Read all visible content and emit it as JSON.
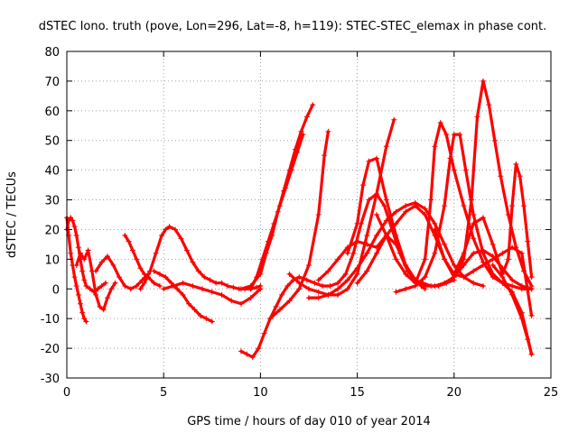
{
  "chart_data": {
    "type": "scatter",
    "title": "dSTEC Iono. truth (pove, Lon=296, Lat=-8, h=119): STEC-STEC_elemax in phase cont.",
    "xlabel": "GPS time / hours of day 010 of year 2014",
    "ylabel": "dSTEC  / TECUs",
    "xlim": [
      0,
      25
    ],
    "ylim": [
      -30,
      80
    ],
    "grid": true,
    "marker": "plus",
    "colors": {
      "series": "#ff0000",
      "grid": "#a0a0a0",
      "axis": "#000000"
    },
    "xticks": [
      "0",
      "5",
      "10",
      "15",
      "20",
      "25"
    ],
    "yticks": [
      "-30",
      "-20",
      "-10",
      "0",
      "10",
      "20",
      "30",
      "40",
      "50",
      "60",
      "70",
      "80"
    ],
    "series": [
      {
        "x": [
          0.0,
          0.1,
          0.2,
          0.3,
          0.4,
          0.5,
          0.6,
          0.7,
          0.8,
          0.9,
          1.0,
          1.2,
          1.4,
          1.6,
          1.8,
          2.0
        ],
        "y": [
          20,
          23,
          24,
          23,
          21,
          18,
          14,
          10,
          6,
          3,
          1,
          0,
          -1,
          0,
          1,
          2
        ]
      },
      {
        "x": [
          0.0,
          0.1,
          0.2,
          0.3,
          0.4,
          0.5,
          0.6,
          0.7,
          0.8,
          0.9,
          1.0
        ],
        "y": [
          24,
          18,
          12,
          8,
          4,
          1,
          -2,
          -5,
          -8,
          -10,
          -11
        ]
      },
      {
        "x": [
          0.5,
          0.7,
          0.9,
          1.1,
          1.3,
          1.5,
          1.7,
          1.9,
          2.1,
          2.3,
          2.5
        ],
        "y": [
          8,
          12,
          10,
          13,
          6,
          -2,
          -6,
          -7,
          -3,
          0,
          2
        ]
      },
      {
        "x": [
          1.5,
          1.8,
          2.1,
          2.4,
          2.7,
          3.0,
          3.3,
          3.6,
          3.9,
          4.2
        ],
        "y": [
          6,
          9,
          11,
          8,
          4,
          1,
          0,
          1,
          3,
          5
        ]
      },
      {
        "x": [
          3.0,
          3.2,
          3.4,
          3.6,
          3.8,
          4.0,
          4.2,
          4.5,
          4.8
        ],
        "y": [
          18,
          16,
          13,
          10,
          7,
          5,
          4,
          2,
          1
        ]
      },
      {
        "x": [
          3.8,
          4.0,
          4.3,
          4.6,
          4.9,
          5.1,
          5.3,
          5.6,
          5.9,
          6.2,
          6.5,
          6.8,
          7.1,
          7.4,
          7.7,
          8.0,
          8.3,
          8.6,
          8.9,
          9.2,
          9.5,
          9.8,
          10.0
        ],
        "y": [
          0,
          2,
          6,
          12,
          18,
          20,
          21,
          20,
          17,
          13,
          9,
          6,
          4,
          3,
          2,
          2,
          1,
          0.5,
          0,
          0,
          0,
          0.5,
          1
        ]
      },
      {
        "x": [
          4.5,
          4.8,
          5.1,
          5.4,
          5.7,
          6.0,
          6.3,
          6.6,
          6.9,
          7.2,
          7.5
        ],
        "y": [
          6,
          5,
          4,
          2,
          0,
          -2,
          -5,
          -7,
          -9,
          -10,
          -11
        ]
      },
      {
        "x": [
          5.0,
          5.5,
          6.0,
          6.5,
          7.0,
          7.5,
          8.0,
          8.5,
          9.0,
          9.5,
          10.0
        ],
        "y": [
          0,
          1,
          2,
          1,
          0,
          -1,
          -2,
          -4,
          -5,
          -3,
          0
        ]
      },
      {
        "x": [
          9.0,
          9.5,
          10.0,
          10.3,
          10.6,
          10.9,
          11.2,
          11.5,
          11.8,
          12.1,
          12.4,
          12.7
        ],
        "y": [
          0,
          1,
          5,
          12,
          18,
          26,
          33,
          40,
          47,
          53,
          58,
          62
        ]
      },
      {
        "x": [
          9.5,
          9.8,
          10.1,
          10.4,
          10.7,
          11.0,
          11.3,
          11.6,
          11.9,
          12.2
        ],
        "y": [
          0,
          4,
          10,
          16,
          22,
          28,
          34,
          40,
          46,
          52
        ]
      },
      {
        "x": [
          9.0,
          9.3,
          9.6,
          9.9,
          10.2,
          10.5,
          10.8,
          11.1,
          11.4,
          11.7,
          12.0,
          12.4,
          12.8,
          13.2,
          13.6,
          14.0,
          14.4,
          14.8,
          15.2,
          15.6,
          16.0,
          16.4,
          16.8,
          17.2,
          17.6,
          18.0,
          18.4,
          18.8,
          19.2,
          19.6,
          20.0
        ],
        "y": [
          -21,
          -22,
          -23,
          -20,
          -15,
          -10,
          -6,
          -2,
          1,
          3,
          4,
          3,
          2,
          1,
          1,
          2,
          5,
          12,
          22,
          30,
          32,
          28,
          20,
          12,
          6,
          3,
          2,
          1,
          1,
          2,
          3
        ]
      },
      {
        "x": [
          10.5,
          11.0,
          11.5,
          12.0,
          12.5,
          13.0,
          13.3,
          13.5
        ],
        "y": [
          -10,
          -7,
          -4,
          0,
          8,
          25,
          45,
          53
        ]
      },
      {
        "x": [
          11.5,
          12.0,
          12.5,
          13.0,
          13.5,
          14.0,
          14.5,
          15.0,
          15.5,
          16.0,
          16.5,
          16.9
        ],
        "y": [
          5,
          2,
          0,
          -1,
          -2,
          -2,
          0,
          5,
          18,
          32,
          48,
          57
        ]
      },
      {
        "x": [
          12.5,
          13.0,
          13.5,
          14.0,
          14.5,
          15.0,
          15.5,
          16.0,
          16.5,
          17.0,
          17.5,
          18.0,
          18.5,
          19.0,
          19.5,
          20.0,
          20.5,
          21.0,
          21.5
        ],
        "y": [
          -3,
          -3,
          -2,
          0,
          3,
          7,
          12,
          18,
          23,
          26,
          28,
          29,
          27,
          22,
          15,
          8,
          4,
          2,
          1
        ]
      },
      {
        "x": [
          13.0,
          13.5,
          14.0,
          14.5,
          15.0,
          15.5,
          16.0,
          16.5,
          17.0,
          17.5,
          18.0,
          18.5,
          19.0,
          19.5,
          20.0,
          20.5,
          21.0,
          21.5,
          22.0,
          22.5,
          23.0,
          23.5,
          24.0
        ],
        "y": [
          3,
          6,
          10,
          14,
          16,
          15,
          14,
          18,
          22,
          26,
          28,
          25,
          18,
          10,
          5,
          4,
          6,
          8,
          10,
          12,
          14,
          12,
          -9
        ]
      },
      {
        "x": [
          14.5,
          15.0,
          15.3,
          15.6,
          16.0,
          16.5,
          17.0,
          17.5,
          18.0,
          18.5,
          19.0,
          19.5,
          20.0,
          20.5,
          21.0,
          21.5,
          22.0,
          22.5,
          23.0,
          23.5,
          24.0
        ],
        "y": [
          12,
          22,
          35,
          43,
          44,
          30,
          18,
          8,
          3,
          1,
          1,
          2,
          4,
          8,
          12,
          13,
          11,
          7,
          3,
          1,
          0
        ]
      },
      {
        "x": [
          15.0,
          15.5,
          16.0,
          16.5,
          17.0,
          17.5,
          18.0,
          18.3,
          18.5
        ],
        "y": [
          2,
          6,
          12,
          18,
          15,
          8,
          3,
          1,
          0
        ]
      },
      {
        "x": [
          16.0,
          16.5,
          17.0,
          17.5,
          18.0,
          18.5,
          18.8,
          19.0,
          19.3,
          19.6,
          20.0,
          20.5,
          21.0,
          21.5,
          22.0,
          22.5,
          23.0,
          23.5,
          24.0
        ],
        "y": [
          25,
          18,
          10,
          5,
          2,
          10,
          30,
          48,
          56,
          52,
          40,
          28,
          17,
          9,
          4,
          2,
          1,
          0,
          0
        ]
      },
      {
        "x": [
          17.0,
          17.5,
          18.0,
          18.5,
          19.0,
          19.5,
          19.8,
          20.0,
          20.3,
          20.6,
          21.0,
          21.5,
          22.0,
          22.5,
          23.0,
          23.5,
          24.0
        ],
        "y": [
          -1,
          0,
          1,
          4,
          12,
          28,
          44,
          52,
          52,
          40,
          25,
          12,
          5,
          2,
          -1,
          -8,
          -22
        ]
      },
      {
        "x": [
          19.0,
          19.5,
          20.0,
          20.5,
          20.9,
          21.2,
          21.5,
          21.8,
          22.1,
          22.4,
          22.8,
          23.2,
          23.6,
          24.0
        ],
        "y": [
          20,
          10,
          4,
          10,
          30,
          58,
          70,
          62,
          50,
          38,
          25,
          14,
          6,
          1
        ]
      },
      {
        "x": [
          20.0,
          20.5,
          21.0,
          21.5,
          22.0,
          22.5,
          22.8,
          23.0,
          23.2,
          23.4,
          23.6,
          23.8,
          24.0
        ],
        "y": [
          5,
          12,
          22,
          24,
          15,
          5,
          10,
          28,
          42,
          38,
          28,
          16,
          4
        ]
      },
      {
        "x": [
          22.0,
          22.5,
          23.0,
          23.5,
          23.8,
          24.0
        ],
        "y": [
          8,
          4,
          -2,
          -10,
          -17,
          -22
        ]
      }
    ]
  }
}
